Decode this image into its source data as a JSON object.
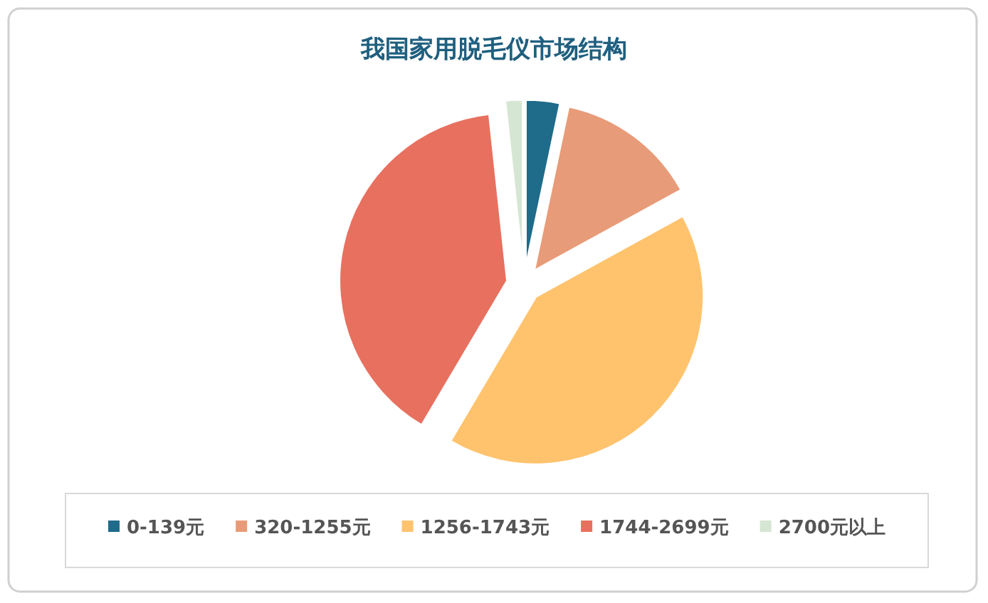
{
  "chart_data": {
    "type": "pie",
    "title": "我国家用脱毛仪市场结构",
    "categories": [
      "0-139元",
      "320-1255元",
      "1256-1743元",
      "1744-2699元",
      "2700元以上"
    ],
    "values": [
      3.3,
      13.7,
      41.5,
      39.8,
      1.7
    ],
    "colors": [
      "#1f6b8a",
      "#e89b78",
      "#ffc36e",
      "#e8705f",
      "#d5e6d2"
    ],
    "legend": "bottom"
  }
}
